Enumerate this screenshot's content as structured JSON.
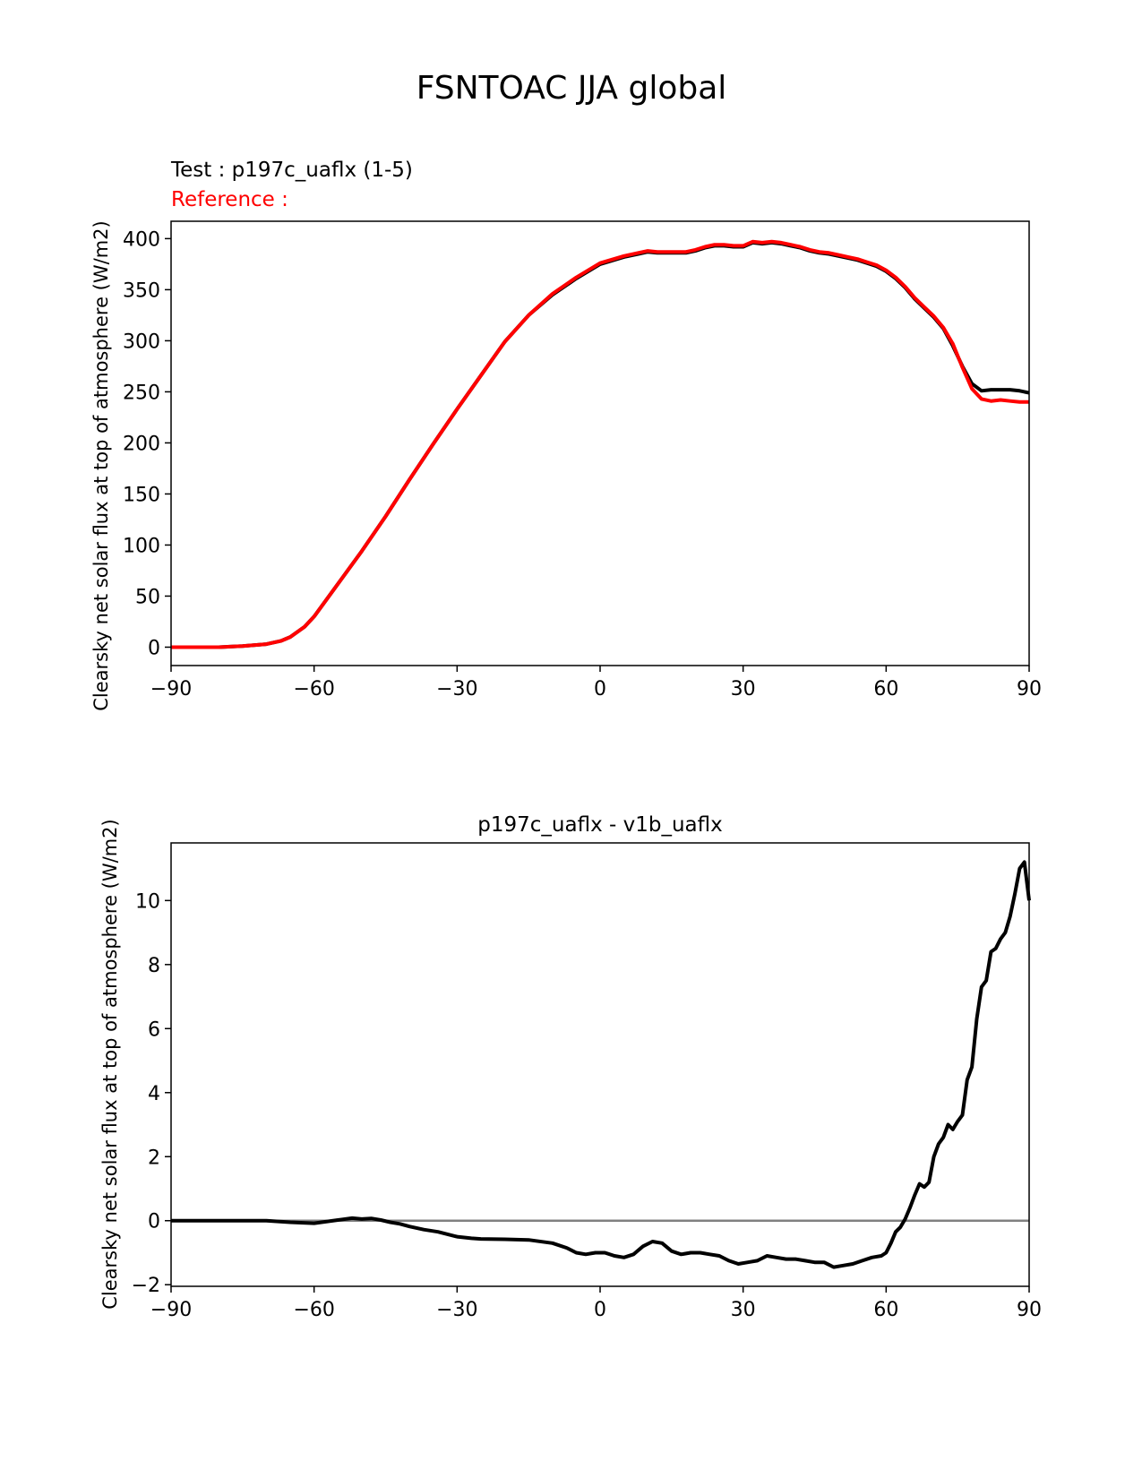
{
  "figure": {
    "suptitle": "FSNTOAC JJA global"
  },
  "colors": {
    "test": "#000000",
    "reference": "#ff0000",
    "zero_line": "#808080",
    "axes": "#000000"
  },
  "chart_data": [
    {
      "type": "line",
      "title_test": "Test : p197c_uaflx (1-5)",
      "title_reference": "Reference :",
      "xlabel": "",
      "ylabel": "Clearsky net solar flux at top of atmosphere (W/m2)",
      "xlim": [
        -90,
        90
      ],
      "ylim": [
        -18,
        417
      ],
      "xticks": [
        -90,
        -60,
        -30,
        0,
        30,
        60,
        90
      ],
      "xtick_labels": [
        "−90",
        "−60",
        "−30",
        "0",
        "30",
        "60",
        "90"
      ],
      "yticks": [
        0,
        50,
        100,
        150,
        200,
        250,
        300,
        350,
        400
      ],
      "ytick_labels": [
        "0",
        "50",
        "100",
        "150",
        "200",
        "250",
        "300",
        "350",
        "400"
      ],
      "grid": false,
      "series": [
        {
          "role": "test",
          "x": [
            -90,
            -85,
            -80,
            -75,
            -70,
            -67,
            -65,
            -62,
            -60,
            -55,
            -50,
            -45,
            -40,
            -35,
            -30,
            -25,
            -20,
            -15,
            -10,
            -5,
            0,
            5,
            8,
            10,
            12,
            14,
            16,
            18,
            20,
            22,
            24,
            26,
            28,
            30,
            32,
            34,
            36,
            38,
            40,
            42,
            44,
            46,
            48,
            50,
            52,
            54,
            56,
            58,
            60,
            62,
            64,
            66,
            68,
            70,
            72,
            74,
            76,
            78,
            80,
            82,
            84,
            86,
            88,
            90
          ],
          "y": [
            0,
            0,
            0,
            1,
            3,
            6,
            10,
            20,
            30,
            62,
            94,
            128,
            164,
            199,
            233,
            266,
            299,
            325,
            345,
            361,
            375,
            382,
            385,
            387,
            386,
            386,
            386,
            386,
            388,
            391,
            393,
            393,
            392,
            392,
            396,
            395,
            396,
            395,
            393,
            391,
            388,
            386,
            385,
            383,
            381,
            379,
            376,
            373,
            368,
            361,
            352,
            341,
            332,
            323,
            312,
            295,
            275,
            258,
            251,
            252,
            252,
            252,
            251,
            249
          ]
        },
        {
          "role": "reference",
          "x": [
            -90,
            -85,
            -80,
            -75,
            -70,
            -67,
            -65,
            -62,
            -60,
            -55,
            -50,
            -45,
            -40,
            -35,
            -30,
            -25,
            -20,
            -15,
            -10,
            -5,
            0,
            5,
            8,
            10,
            12,
            14,
            16,
            18,
            20,
            22,
            24,
            26,
            28,
            30,
            32,
            34,
            36,
            38,
            40,
            42,
            44,
            46,
            48,
            50,
            52,
            54,
            56,
            58,
            60,
            62,
            64,
            66,
            68,
            70,
            72,
            74,
            76,
            78,
            80,
            82,
            84,
            86,
            88,
            90
          ],
          "y": [
            0,
            0,
            0,
            1,
            3,
            6,
            10,
            20,
            30,
            62,
            94,
            128,
            164,
            199,
            233,
            266,
            299,
            325,
            346,
            362,
            376,
            383,
            386,
            388,
            387,
            387,
            387,
            387,
            389,
            392,
            394,
            394,
            393,
            393,
            397,
            396,
            397,
            396,
            394,
            392,
            389,
            387,
            386,
            384,
            382,
            380,
            377,
            374,
            369,
            362,
            353,
            342,
            333,
            324,
            313,
            297,
            274,
            253,
            243,
            241,
            242,
            241,
            240,
            240
          ]
        }
      ]
    },
    {
      "type": "line",
      "title": "p197c_uaflx - v1b_uaflx",
      "xlabel": "",
      "ylabel": "Clearsky net solar flux at top of atmosphere (W/m2)",
      "xlim": [
        -90,
        90
      ],
      "ylim": [
        -2.05,
        11.8
      ],
      "xticks": [
        -90,
        -60,
        -30,
        0,
        30,
        60,
        90
      ],
      "xtick_labels": [
        "−90",
        "−60",
        "−30",
        "0",
        "30",
        "60",
        "90"
      ],
      "yticks": [
        -2,
        0,
        2,
        4,
        6,
        8,
        10
      ],
      "ytick_labels": [
        "−2",
        "0",
        "2",
        "4",
        "6",
        "8",
        "10"
      ],
      "grid": false,
      "zero_line": true,
      "series": [
        {
          "role": "difference",
          "x": [
            -90,
            -70,
            -65,
            -60,
            -55,
            -52,
            -50,
            -48,
            -46,
            -44,
            -42,
            -40,
            -37,
            -34,
            -30,
            -27,
            -25,
            -20,
            -15,
            -10,
            -7,
            -5,
            -3,
            -1,
            0,
            1,
            3,
            5,
            7,
            9,
            11,
            13,
            15,
            17,
            19,
            21,
            23,
            25,
            27,
            29,
            31,
            33,
            35,
            37,
            39,
            41,
            43,
            45,
            47,
            49,
            51,
            53,
            55,
            57,
            59,
            60,
            61,
            62,
            63,
            64,
            65,
            66,
            67,
            68,
            69,
            70,
            71,
            72,
            73,
            74,
            75,
            76,
            77,
            78,
            79,
            80,
            81,
            82,
            83,
            84,
            85,
            86,
            87,
            88,
            89,
            90
          ],
          "y": [
            0,
            0,
            -0.05,
            -0.08,
            0.02,
            0.08,
            0.05,
            0.07,
            0.02,
            -0.05,
            -0.1,
            -0.18,
            -0.28,
            -0.35,
            -0.5,
            -0.55,
            -0.57,
            -0.58,
            -0.6,
            -0.7,
            -0.85,
            -1.0,
            -1.05,
            -1.0,
            -1.0,
            -1.0,
            -1.1,
            -1.15,
            -1.05,
            -0.8,
            -0.65,
            -0.7,
            -0.95,
            -1.05,
            -1.0,
            -1.0,
            -1.05,
            -1.1,
            -1.25,
            -1.35,
            -1.3,
            -1.25,
            -1.1,
            -1.15,
            -1.2,
            -1.2,
            -1.25,
            -1.3,
            -1.3,
            -1.45,
            -1.4,
            -1.35,
            -1.25,
            -1.15,
            -1.1,
            -1.0,
            -0.7,
            -0.35,
            -0.2,
            0.05,
            0.4,
            0.8,
            1.15,
            1.05,
            1.2,
            2.0,
            2.4,
            2.6,
            3.0,
            2.85,
            3.1,
            3.3,
            4.4,
            4.8,
            6.3,
            7.3,
            7.5,
            8.4,
            8.5,
            8.8,
            9.0,
            9.5,
            10.2,
            11.0,
            11.2,
            10.0
          ]
        }
      ]
    }
  ]
}
